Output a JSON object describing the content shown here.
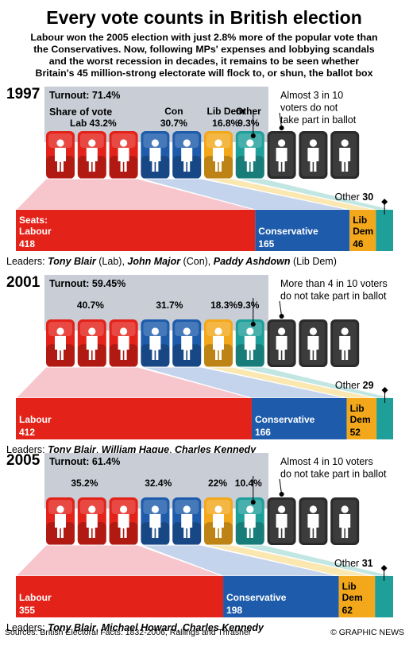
{
  "title": "Every vote counts in British election",
  "subtitle_lines": [
    "Labour won the 2005 election with just 2.8% more of the popular vote than",
    "the Conservatives. Now, following MPs' expenses and lobbying scandals",
    "and the worst recession in decades, it remains to be seen whether",
    "Britain's 45 million-strong electorate will flock to, or shun, the ballot box"
  ],
  "colors": {
    "labour": "#e32219",
    "labour_fig": "#a8102a",
    "labour_tint": "#f7c6cc",
    "conservative": "#1e5cab",
    "conservative_fig": "#3f73c9",
    "conservative_tint": "#c4d4ec",
    "libdem": "#f3a81b",
    "libdem_fig": "#f3a81b",
    "libdem_tint": "#fbe7b0",
    "other": "#1f9f9a",
    "other_tint": "#c2e6e2",
    "nonvoter": "#2b2b2b",
    "panel": "#c8cdd6"
  },
  "share_of_vote_label": "Share of vote",
  "chart_data": [
    {
      "type": "bar",
      "year": "1997",
      "turnout": "Turnout: 71.4%",
      "vote_share_labels": [
        "Lab",
        "Con",
        "Lib Dem",
        "Other"
      ],
      "vote_share": [
        43.2,
        30.7,
        16.8,
        9.3
      ],
      "vote_share_text": [
        "Lab 43.2%",
        "30.7%",
        "16.8%",
        "9.3%"
      ],
      "vote_share_headers": [
        "",
        "Con",
        "Lib Dem",
        "Other"
      ],
      "nonvoter_note": [
        "Almost 3 in 10",
        "voters do not",
        "take part in ballot"
      ],
      "seats_label": "Seats:",
      "categories": [
        "Labour",
        "Conservative",
        "Lib Dem",
        "Other"
      ],
      "seat_names": [
        "Labour",
        "Conservative",
        "Lib Dem",
        "Other"
      ],
      "seats": [
        418,
        165,
        46,
        30
      ],
      "leaders_label": "Leaders:",
      "leaders": [
        "Tony Blair",
        "John Major",
        "Paddy Ashdown"
      ],
      "leader_parties": [
        " (Lab)",
        " (Con)",
        " (Lib Dem)"
      ]
    },
    {
      "type": "bar",
      "year": "2001",
      "turnout": "Turnout: 59.45%",
      "vote_share_labels": [
        "Lab",
        "Con",
        "Lib Dem",
        "Other"
      ],
      "vote_share": [
        40.7,
        31.7,
        18.3,
        9.3
      ],
      "vote_share_text": [
        "40.7%",
        "31.7%",
        "18.3%",
        "9.3%"
      ],
      "vote_share_headers": [
        "",
        "",
        "",
        ""
      ],
      "nonvoter_note": [
        "More than 4 in 10 voters",
        "do not take part in ballot"
      ],
      "seats_label": "",
      "categories": [
        "Labour",
        "Conservative",
        "Lib Dem",
        "Other"
      ],
      "seat_names": [
        "Labour",
        "Conservative",
        "Lib Dem",
        "Other"
      ],
      "seats": [
        412,
        166,
        52,
        29
      ],
      "leaders_label": "Leaders:",
      "leaders": [
        "Tony Blair",
        "William Hague",
        "Charles Kennedy"
      ],
      "leader_parties": [
        "",
        "",
        ""
      ]
    },
    {
      "type": "bar",
      "year": "2005",
      "turnout": "Turnout: 61.4%",
      "vote_share_labels": [
        "Lab",
        "Con",
        "Lib Dem",
        "Other"
      ],
      "vote_share": [
        35.2,
        32.4,
        22,
        10.4
      ],
      "vote_share_text": [
        "35.2%",
        "32.4%",
        "22%",
        "10.4%"
      ],
      "vote_share_headers": [
        "",
        "",
        "",
        ""
      ],
      "nonvoter_note": [
        "Almost 4 in 10 voters",
        "do not take part in ballot"
      ],
      "seats_label": "",
      "categories": [
        "Labour",
        "Conservative",
        "Lib Dem",
        "Other"
      ],
      "seat_names": [
        "Labour",
        "Conservative",
        "Lib Dem",
        "Other"
      ],
      "seats": [
        355,
        198,
        62,
        31
      ],
      "leaders_label": "Leaders:",
      "leaders": [
        "Tony Blair",
        "Michael Howard",
        "Charles Kennedy"
      ],
      "leader_parties": [
        "",
        "",
        ""
      ]
    }
  ],
  "footer": {
    "sources": "Sources: British Electoral Facts: 1832-2006, Rallings and Thrasher",
    "credit": "© GRAPHIC NEWS"
  }
}
